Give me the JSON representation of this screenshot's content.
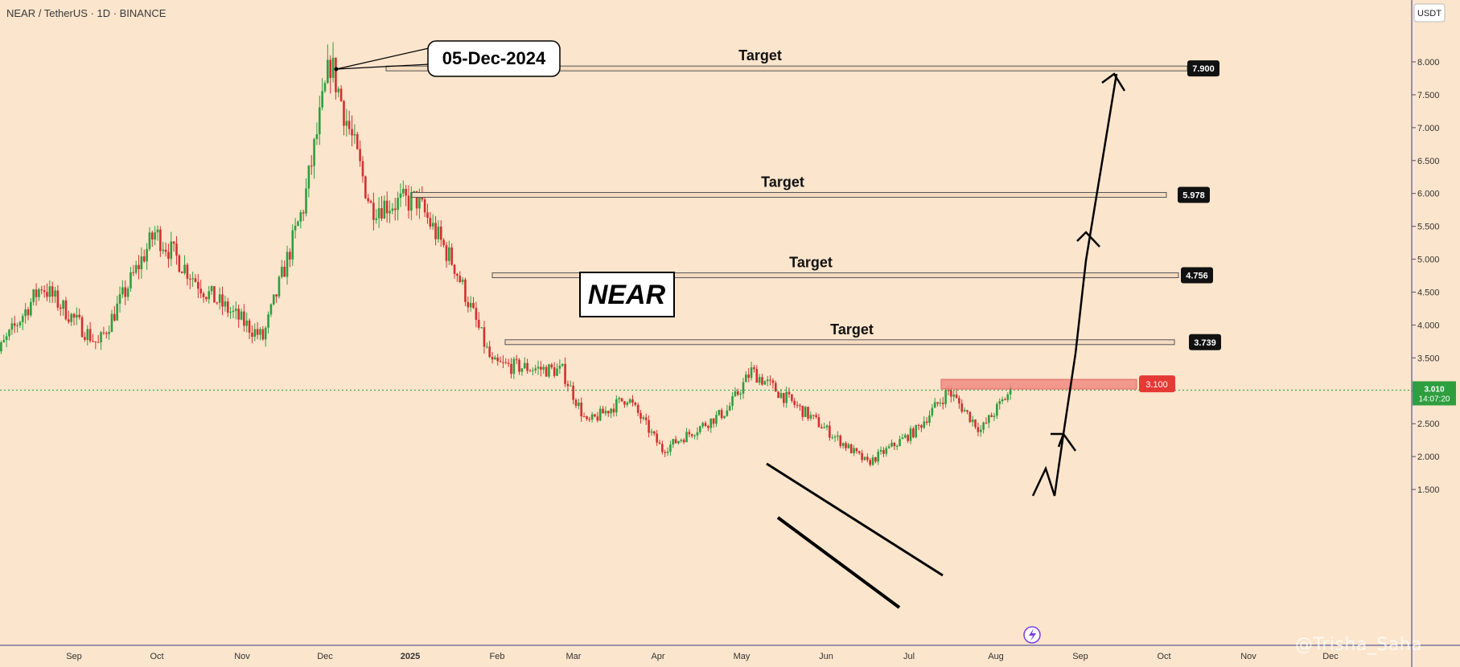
{
  "header": {
    "symbol_line": "NEAR / TetherUS · 1D · BINANCE"
  },
  "axis": {
    "currency": "USDT",
    "price_ticks": [
      "8.000",
      "7.500",
      "7.000",
      "6.500",
      "6.000",
      "5.500",
      "5.000",
      "4.500",
      "4.000",
      "3.500",
      "3.000",
      "2.500",
      "2.000",
      "1.500"
    ],
    "month_labels": [
      "Sep",
      "Oct",
      "Nov",
      "Dec",
      "2025",
      "Feb",
      "Mar",
      "Apr",
      "May",
      "Jun",
      "Jul",
      "Aug",
      "Sep",
      "Oct",
      "Nov",
      "Dec"
    ]
  },
  "current_price": {
    "value": "3.010",
    "countdown": "14:07:20"
  },
  "annotations": {
    "date_callout": "05-Dec-2024",
    "name_box": "NEAR",
    "target_label": "Target",
    "targets": [
      "7.900",
      "5.978",
      "4.756",
      "3.739"
    ],
    "breakout_level": "3.100",
    "watermark": "@Trisha_Saha"
  },
  "colors": {
    "up": "#26a69a",
    "up_alt": "#2e9e3e",
    "down": "#d32f2f",
    "background": "#fbe5cc",
    "breakout": "#f28b82"
  },
  "chart_data": {
    "type": "candlestick",
    "title": "NEAR / TetherUS · 1D · BINANCE",
    "ylabel": "USDT",
    "ylim": [
      1.3,
      8.8
    ],
    "x_range": [
      "2024-08-01",
      "2025-12-31"
    ],
    "key_prices": [
      {
        "date": "2024-08-01",
        "price": 3.4
      },
      {
        "date": "2024-08-20",
        "price": 4.6
      },
      {
        "date": "2024-09-10",
        "price": 3.7
      },
      {
        "date": "2024-10-01",
        "price": 5.4
      },
      {
        "date": "2024-10-20",
        "price": 4.5
      },
      {
        "date": "2024-11-10",
        "price": 3.8
      },
      {
        "date": "2024-11-25",
        "price": 5.8
      },
      {
        "date": "2024-12-05",
        "price": 8.0
      },
      {
        "date": "2024-12-20",
        "price": 5.8
      },
      {
        "date": "2025-01-06",
        "price": 5.9
      },
      {
        "date": "2025-01-20",
        "price": 4.9
      },
      {
        "date": "2025-02-03",
        "price": 3.4
      },
      {
        "date": "2025-03-01",
        "price": 3.3
      },
      {
        "date": "2025-03-10",
        "price": 2.5
      },
      {
        "date": "2025-03-25",
        "price": 2.9
      },
      {
        "date": "2025-04-07",
        "price": 2.1
      },
      {
        "date": "2025-05-01",
        "price": 2.7
      },
      {
        "date": "2025-05-10",
        "price": 3.3
      },
      {
        "date": "2025-06-01",
        "price": 2.6
      },
      {
        "date": "2025-06-22",
        "price": 1.9
      },
      {
        "date": "2025-07-10",
        "price": 2.4
      },
      {
        "date": "2025-07-22",
        "price": 3.0
      },
      {
        "date": "2025-08-03",
        "price": 2.4
      },
      {
        "date": "2025-08-14",
        "price": 3.0
      }
    ],
    "targets": [
      3.739,
      4.756,
      5.978,
      7.9
    ],
    "breakout_level": 3.1,
    "last_price": 3.01,
    "peak_date": "2024-12-05"
  }
}
